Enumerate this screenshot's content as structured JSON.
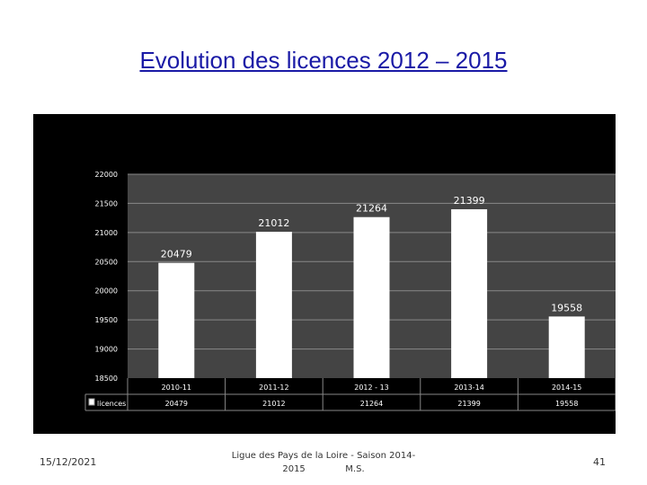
{
  "title": "Evolution des licences 2012 – 2015",
  "footer": {
    "date": "15/12/2021",
    "center_line1": "Ligue des Pays de la Loire - Saison 2014-",
    "center_line2": "2015              M.S.",
    "page": "41"
  },
  "chart_data": {
    "type": "bar",
    "title": "",
    "xlabel": "",
    "ylabel": "",
    "ylim": [
      18500,
      22000
    ],
    "yticks": [
      "22000",
      "21500",
      "21000",
      "20500",
      "20000",
      "19500",
      "19000",
      "18500"
    ],
    "categories": [
      "2010-11",
      "2011-12",
      "2012 - 13",
      "2013-14",
      "2014-15"
    ],
    "series": [
      {
        "name": "licences",
        "values": [
          20479,
          21012,
          21264,
          21399,
          19558
        ]
      }
    ],
    "data_labels": [
      "20479",
      "21012",
      "21264",
      "21399",
      "19558"
    ],
    "table_values": [
      "20479",
      "21012",
      "21264",
      "21399",
      "19558"
    ],
    "colors": {
      "background": "#000000",
      "plot": "#444444",
      "bar": "#ffffff",
      "grid": "#888888",
      "text": "#ffffff"
    }
  }
}
